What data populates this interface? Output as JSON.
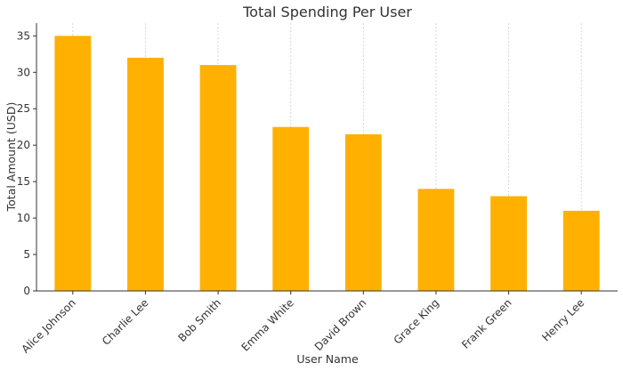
{
  "chart_data": {
    "type": "bar",
    "title": "Total Spending Per User",
    "xlabel": "User Name",
    "ylabel": "Total Amount (USD)",
    "categories": [
      "Alice Johnson",
      "Charlie Lee",
      "Bob Smith",
      "Emma White",
      "David Brown",
      "Grace King",
      "Frank Green",
      "Henry Lee"
    ],
    "values": [
      35,
      32,
      31,
      22.5,
      21.5,
      14,
      13,
      11
    ],
    "ylim": [
      0,
      36.75
    ],
    "yticks": [
      0,
      5,
      10,
      15,
      20,
      25,
      30,
      35
    ],
    "grid": {
      "x": true,
      "y": false
    },
    "bar_color": "#FFB000"
  }
}
